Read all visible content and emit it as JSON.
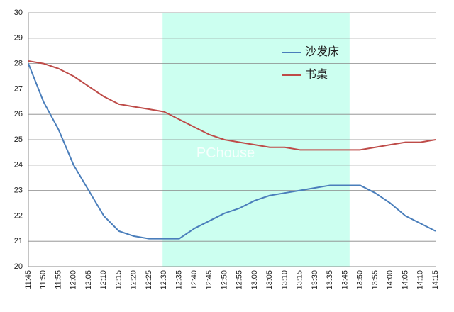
{
  "chart_data": {
    "type": "line",
    "categories": [
      "11:45",
      "11:50",
      "11:55",
      "12:00",
      "12:05",
      "12:10",
      "12:15",
      "12:20",
      "12:25",
      "12:30",
      "12:35",
      "12:40",
      "12:45",
      "12:50",
      "12:55",
      "13:00",
      "13:05",
      "13:10",
      "13:15",
      "13:30",
      "13:35",
      "13:45",
      "13:50",
      "13:55",
      "14:00",
      "14:05",
      "14:10",
      "14:15"
    ],
    "series": [
      {
        "name": "沙发床",
        "color": "#4a7ebb",
        "values": [
          28.0,
          26.5,
          25.4,
          24.0,
          23.0,
          22.0,
          21.4,
          21.2,
          21.1,
          21.1,
          21.1,
          21.5,
          21.8,
          22.1,
          22.3,
          22.6,
          22.8,
          22.9,
          23.0,
          23.1,
          23.2,
          23.2,
          23.2,
          22.9,
          22.5,
          22.0,
          21.7,
          21.4
        ]
      },
      {
        "name": "书桌",
        "color": "#be4b48",
        "values": [
          28.1,
          28.0,
          27.8,
          27.5,
          27.1,
          26.7,
          26.4,
          26.3,
          26.2,
          26.1,
          25.8,
          25.5,
          25.2,
          25.0,
          24.9,
          24.8,
          24.7,
          24.7,
          24.6,
          24.6,
          24.6,
          24.6,
          24.6,
          24.7,
          24.8,
          24.9,
          24.9,
          25.0
        ]
      }
    ],
    "highlight_range": [
      "12:30",
      "13:45"
    ],
    "highlight_color": "#ccfff0",
    "ylim": [
      20,
      30
    ],
    "yticks": [
      20,
      21,
      22,
      23,
      24,
      25,
      26,
      27,
      28,
      29,
      30
    ],
    "grid": true,
    "legend": "upper right",
    "watermark": "PChouse"
  }
}
